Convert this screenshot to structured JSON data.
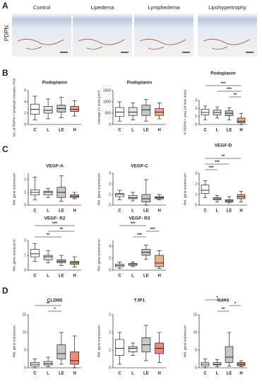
{
  "panels": [
    "A",
    "B",
    "C",
    "D"
  ],
  "panel_a": {
    "ylabel": "PDPN",
    "titles": [
      "Control",
      "Lipedema",
      "Lymphedema",
      "Lipohypertrophy"
    ]
  },
  "chart_data": [
    {
      "type": "box",
      "title": "Podoplanin",
      "ylabel": "No. of PDPN + lymphatic vessels / ROI",
      "categories": [
        "C",
        "L",
        "LE",
        "H"
      ],
      "colors": [
        "#ffffff",
        "#e6e6e6",
        "#c8c8c8",
        "#f4a58a"
      ],
      "ylim": [
        0,
        6
      ],
      "yticks": [
        0,
        2,
        4,
        6
      ],
      "values": [
        {
          "min": 0.8,
          "q1": 1.8,
          "median": 2.7,
          "q3": 3.6,
          "max": 5
        },
        {
          "min": 1,
          "q1": 2,
          "median": 2.5,
          "q3": 3.2,
          "max": 4.5
        },
        {
          "min": 1.2,
          "q1": 2.2,
          "median": 2.8,
          "q3": 3.4,
          "max": 4.8
        },
        {
          "min": 1.5,
          "q1": 2.3,
          "median": 2.7,
          "q3": 3.2,
          "max": 4.2
        }
      ],
      "significance": []
    },
    {
      "type": "box",
      "title": "Podoplanin",
      "ylabel": "Average LV area (μm²)",
      "categories": [
        "C",
        "L",
        "LE",
        "H"
      ],
      "colors": [
        "#ffffff",
        "#e6e6e6",
        "#c8c8c8",
        "#f4a58a"
      ],
      "ylim": [
        0,
        1500
      ],
      "yticks": [
        0,
        500,
        1000,
        1500
      ],
      "values": [
        {
          "min": 150,
          "q1": 350,
          "median": 550,
          "q3": 750,
          "max": 1000
        },
        {
          "min": 200,
          "q1": 400,
          "median": 550,
          "q3": 750,
          "max": 950
        },
        {
          "min": 150,
          "q1": 400,
          "median": 650,
          "q3": 850,
          "max": 1100
        },
        {
          "min": 250,
          "q1": 400,
          "median": 550,
          "q3": 700,
          "max": 950
        }
      ],
      "significance": []
    },
    {
      "type": "box",
      "title": "Podoplanin",
      "ylabel": "% PDPN + area (of total area)",
      "categories": [
        "C",
        "L",
        "LE",
        "H"
      ],
      "colors": [
        "#ffffff",
        "#e6e6e6",
        "#c8c8c8",
        "#f4a58a"
      ],
      "ylim": [
        0,
        3
      ],
      "yticks": [
        0,
        1,
        2,
        3
      ],
      "values": [
        {
          "min": 0.6,
          "q1": 1.2,
          "median": 1.5,
          "q3": 1.9,
          "max": 2.3
        },
        {
          "min": 0.8,
          "q1": 1.2,
          "median": 1.5,
          "q3": 1.8,
          "max": 2.2
        },
        {
          "min": 0.6,
          "q1": 1.1,
          "median": 1.4,
          "q3": 1.7,
          "max": 2.1
        },
        {
          "min": 0,
          "q1": 0.2,
          "median": 0.4,
          "q3": 0.8,
          "max": 1.4
        }
      ],
      "significance": [
        {
          "from": "LE",
          "to": "H",
          "label": "**"
        },
        {
          "from": "L",
          "to": "H",
          "label": "***"
        },
        {
          "from": "C",
          "to": "H",
          "label": "***"
        }
      ]
    },
    {
      "type": "box",
      "title": "VEGF-A",
      "ylabel": "Rel. gene expression",
      "categories": [
        "C",
        "L",
        "LE",
        "H"
      ],
      "colors": [
        "#ffffff",
        "#e6e6e6",
        "#c8c8c8",
        "#e8b48e"
      ],
      "ylim": [
        0,
        2.5
      ],
      "yticks": [
        0,
        1,
        2
      ],
      "values": [
        {
          "min": 0.4,
          "q1": 0.8,
          "median": 1,
          "q3": 1.2,
          "max": 2.2
        },
        {
          "min": 0.6,
          "q1": 0.8,
          "median": 1,
          "q3": 1.1,
          "max": 1.3
        },
        {
          "min": 0.3,
          "q1": 0.6,
          "median": 1,
          "q3": 1.4,
          "max": 2.3
        },
        {
          "min": 0.5,
          "q1": 0.6,
          "median": 0.7,
          "q3": 0.8,
          "max": 1
        }
      ],
      "significance": []
    },
    {
      "type": "box",
      "title": "VEGF-C",
      "ylabel": "Rel. gene expression",
      "categories": [
        "C",
        "L",
        "LE",
        "H"
      ],
      "colors": [
        "#ffffff",
        "#e6e6e6",
        "#c8c8c8",
        "#e8b48e"
      ],
      "ylim": [
        0,
        3
      ],
      "yticks": [
        0,
        1,
        2,
        3
      ],
      "values": [
        {
          "min": 0.5,
          "q1": 0.8,
          "median": 1,
          "q3": 1.1,
          "max": 1.4
        },
        {
          "min": 0.4,
          "q1": 0.6,
          "median": 0.7,
          "q3": 0.9,
          "max": 1.2
        },
        {
          "min": 0,
          "q1": 0.3,
          "median": 0.6,
          "q3": 1,
          "max": 2.4
        },
        {
          "min": 0.5,
          "q1": 0.6,
          "median": 0.7,
          "q3": 0.8,
          "max": 1
        }
      ],
      "significance": []
    },
    {
      "type": "box",
      "title": "VEGF-D",
      "ylabel": "Rel. gene expression",
      "categories": [
        "C",
        "L",
        "LE",
        "H"
      ],
      "colors": [
        "#ffffff",
        "#e6e6e6",
        "#c8c8c8",
        "#e8b48e"
      ],
      "ylim": [
        0,
        3
      ],
      "yticks": [
        0,
        1,
        2,
        3
      ],
      "values": [
        {
          "min": 0.7,
          "q1": 1.1,
          "median": 1.4,
          "q3": 1.9,
          "max": 2.3
        },
        {
          "min": 0.3,
          "q1": 0.5,
          "median": 0.6,
          "q3": 0.7,
          "max": 0.9
        },
        {
          "min": 0.2,
          "q1": 0.3,
          "median": 0.4,
          "q3": 0.5,
          "max": 0.8
        },
        {
          "min": 0.3,
          "q1": 0.6,
          "median": 0.8,
          "q3": 1,
          "max": 1.3
        }
      ],
      "significance": [
        {
          "from": "C",
          "to": "L",
          "label": "***"
        },
        {
          "from": "C",
          "to": "LE",
          "label": "***"
        },
        {
          "from": "C",
          "to": "H",
          "label": "**"
        }
      ]
    },
    {
      "type": "box",
      "title": "VEGF- R2",
      "ylabel": "Rel. gene expression",
      "categories": [
        "C",
        "L",
        "LE",
        "H"
      ],
      "colors": [
        "#ffffff",
        "#e6e6e6",
        "#c8c8c8",
        "#e8b48e"
      ],
      "ylim": [
        0,
        2
      ],
      "yticks": [
        0,
        1,
        2
      ],
      "values": [
        {
          "min": 0.6,
          "q1": 0.9,
          "median": 1.1,
          "q3": 1.4,
          "max": 1.8
        },
        {
          "min": 0.5,
          "q1": 0.7,
          "median": 0.9,
          "q3": 1,
          "max": 1.3
        },
        {
          "min": 0.3,
          "q1": 0.5,
          "median": 0.6,
          "q3": 0.7,
          "max": 1
        },
        {
          "min": 0.2,
          "q1": 0.4,
          "median": 0.5,
          "q3": 0.6,
          "max": 0.9
        }
      ],
      "significance": [
        {
          "from": "C",
          "to": "LE",
          "label": "**"
        },
        {
          "from": "L",
          "to": "H",
          "label": "**"
        },
        {
          "from": "C",
          "to": "H",
          "label": "***"
        }
      ]
    },
    {
      "type": "box",
      "title": "VEGF- R3",
      "ylabel": "Rel. gene expression",
      "categories": [
        "C",
        "L",
        "LE",
        "H"
      ],
      "colors": [
        "#ffffff",
        "#e6e6e6",
        "#c8c8c8",
        "#e8b48e"
      ],
      "ylim": [
        0,
        5
      ],
      "yticks": [
        0,
        2,
        4
      ],
      "values": [
        {
          "min": 0.3,
          "q1": 0.6,
          "median": 0.8,
          "q3": 1,
          "max": 1.4
        },
        {
          "min": 0.6,
          "q1": 0.8,
          "median": 1,
          "q3": 1.1,
          "max": 1.4
        },
        {
          "min": 1.8,
          "q1": 2.5,
          "median": 3,
          "q3": 3.5,
          "max": 4.2
        },
        {
          "min": 0.3,
          "q1": 0.6,
          "median": 1.2,
          "q3": 2.5,
          "max": 3.3
        }
      ],
      "significance": [
        {
          "from": "L",
          "to": "LE",
          "label": "***"
        },
        {
          "from": "LE",
          "to": "H",
          "label": "***"
        },
        {
          "from": "C",
          "to": "LE",
          "label": "***"
        }
      ]
    },
    {
      "type": "box",
      "title": "CLDN5",
      "ylabel": "Rel. gene expression",
      "categories": [
        "C",
        "L",
        "LE",
        "H"
      ],
      "colors": [
        "#ffffff",
        "#e6e6e6",
        "#c8c8c8",
        "#f08a78"
      ],
      "ylim": [
        0,
        15
      ],
      "yticks": [
        0,
        5,
        10,
        15
      ],
      "values": [
        {
          "min": 0,
          "q1": 0.5,
          "median": 1,
          "q3": 1.5,
          "max": 2.5
        },
        {
          "min": 0.3,
          "q1": 0.8,
          "median": 1.2,
          "q3": 1.8,
          "max": 3
        },
        {
          "min": 1,
          "q1": 2.5,
          "median": 4,
          "q3": 6.5,
          "max": 10
        },
        {
          "min": 0,
          "q1": 1,
          "median": 2,
          "q3": 4.5,
          "max": 9
        }
      ],
      "significance": [
        {
          "from": "L",
          "to": "LE",
          "label": "*"
        },
        {
          "from": "C",
          "to": "LE",
          "label": "**"
        }
      ]
    },
    {
      "type": "box",
      "title": "TJP1",
      "ylabel": "Rel. gene expression",
      "categories": [
        "C",
        "L",
        "LE",
        "H"
      ],
      "colors": [
        "#ffffff",
        "#e6e6e6",
        "#c8c8c8",
        "#f08a78"
      ],
      "ylim": [
        0,
        3
      ],
      "yticks": [
        0,
        1,
        2,
        3
      ],
      "values": [
        {
          "min": 0.2,
          "q1": 0.7,
          "median": 1.1,
          "q3": 1.6,
          "max": 2
        },
        {
          "min": 0.7,
          "q1": 0.9,
          "median": 1.1,
          "q3": 1.2,
          "max": 1.4
        },
        {
          "min": 0.4,
          "q1": 0.9,
          "median": 1.3,
          "q3": 1.7,
          "max": 2.4
        },
        {
          "min": 0.3,
          "q1": 0.8,
          "median": 1.1,
          "q3": 1.4,
          "max": 2
        }
      ],
      "significance": []
    },
    {
      "type": "box",
      "title": "GJA1",
      "ylabel": "Rel. gene expression",
      "categories": [
        "C",
        "L",
        "LE",
        "H"
      ],
      "colors": [
        "#ffffff",
        "#e6e6e6",
        "#c8c8c8",
        "#f08a78"
      ],
      "ylim": [
        0,
        15
      ],
      "yticks": [
        0,
        5,
        10,
        15
      ],
      "values": [
        {
          "min": 0,
          "q1": 0.5,
          "median": 1,
          "q3": 1.5,
          "max": 2.5
        },
        {
          "min": 0.3,
          "q1": 0.8,
          "median": 1,
          "q3": 1.5,
          "max": 2.3
        },
        {
          "min": 0.5,
          "q1": 1.5,
          "median": 3,
          "q3": 6,
          "max": 10
        },
        {
          "min": 0.3,
          "q1": 0.6,
          "median": 1,
          "q3": 1.5,
          "max": 2
        }
      ],
      "significance": [
        {
          "from": "L",
          "to": "LE",
          "label": "**"
        },
        {
          "from": "LE",
          "to": "H",
          "label": "*"
        },
        {
          "from": "C",
          "to": "LE",
          "label": "*"
        }
      ]
    }
  ]
}
